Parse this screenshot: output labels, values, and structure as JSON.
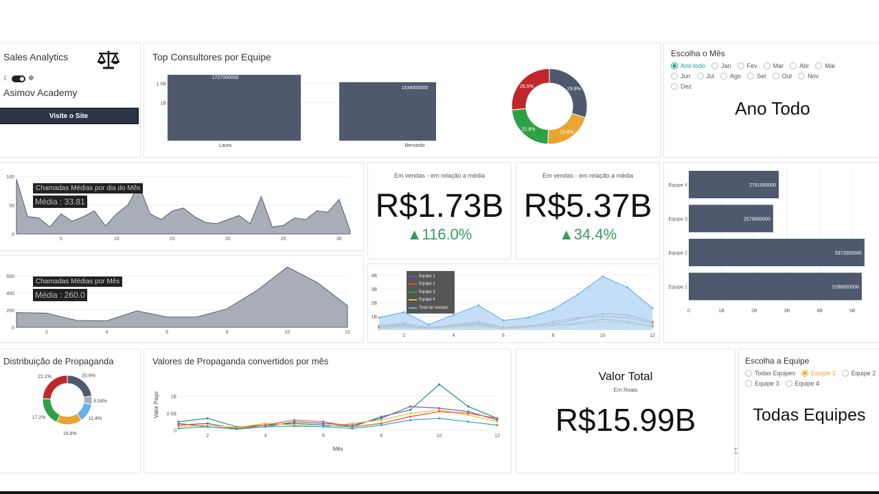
{
  "brand": {
    "app_title": "Sales Analytics",
    "org": "Asimov Academy",
    "visit_button": "Visite o Site",
    "logo_icon": "scale-icon"
  },
  "top_consultants": {
    "title": "Top Consultores por Equipe",
    "chart_data": {
      "type": "bar",
      "categories": [
        "Laura",
        "Bernardo"
      ],
      "values": [
        1727000000,
        1534000000
      ],
      "value_labels": [
        "1727000000",
        "1534000000"
      ],
      "yticks": [
        "1.5B",
        "1B"
      ],
      "ylim": [
        0,
        1800000000
      ]
    }
  },
  "donut_top": {
    "chart_data": {
      "type": "pie",
      "labels": [
        "26.5%",
        "29.8%",
        "20.8%",
        "22.8%"
      ],
      "values": [
        26.5,
        29.8,
        20.8,
        22.8
      ],
      "colors": [
        "#c0272d",
        "#4e596d",
        "#e8a531",
        "#2ea046"
      ]
    }
  },
  "month_filter": {
    "title": "Escolha o Mês",
    "options": [
      "Ano todo",
      "Jan",
      "Fev",
      "Mar",
      "Abr",
      "Mai",
      "Jun",
      "Jul",
      "Ago",
      "Set",
      "Out",
      "Nov",
      "Dez"
    ],
    "selected": "Ano todo",
    "display": "Ano Todo"
  },
  "daily_calls": {
    "badge": "Chamadas Médias por dia do Mês",
    "avg": "Média : 33.81",
    "chart_data": {
      "type": "area",
      "x": [
        1,
        2,
        3,
        4,
        5,
        6,
        7,
        8,
        9,
        10,
        11,
        12,
        13,
        14,
        15,
        16,
        17,
        18,
        19,
        20,
        21,
        22,
        23,
        24,
        25,
        26,
        27,
        28,
        29,
        30,
        31
      ],
      "y": [
        95,
        30,
        28,
        12,
        35,
        22,
        30,
        40,
        14,
        35,
        50,
        85,
        35,
        25,
        40,
        45,
        30,
        20,
        18,
        25,
        32,
        18,
        65,
        12,
        15,
        28,
        25,
        40,
        38,
        60,
        5
      ],
      "xticks": [
        "5",
        "10",
        "15",
        "20",
        "25",
        "30"
      ],
      "yticks": [
        "100",
        "50",
        "0"
      ],
      "ylim": [
        0,
        100
      ]
    }
  },
  "kpi1": {
    "caption": "Em vendas - em relação a média",
    "value": "R$1.73B",
    "delta": "▲116.0%"
  },
  "kpi2": {
    "caption": "Em vendas - em relação a média",
    "value": "R$5.37B",
    "delta": "▲34.4%"
  },
  "team_bars": {
    "chart_data": {
      "type": "bar",
      "orientation": "horizontal",
      "categories": [
        "Equipe 4",
        "Equipe 3",
        "Equipe 2",
        "Equipe 1"
      ],
      "values": [
        2751000000,
        2579000000,
        5372000000,
        5288000000
      ],
      "value_labels": [
        "2751000000",
        "2579000000",
        "5372000000",
        "5288000000"
      ],
      "xticks": [
        "0",
        "1B",
        "2B",
        "3B",
        "4B",
        "5B"
      ],
      "xlim": [
        0,
        5500000000
      ]
    }
  },
  "monthly_calls": {
    "badge": "Chamadas Médias por Mês",
    "avg": "Média : 260.0",
    "chart_data": {
      "type": "area",
      "x": [
        1,
        2,
        3,
        4,
        5,
        6,
        7,
        8,
        9,
        10,
        11,
        12
      ],
      "y": [
        170,
        165,
        80,
        75,
        190,
        120,
        120,
        215,
        430,
        700,
        520,
        250
      ],
      "xticks": [
        "2",
        "4",
        "6",
        "8",
        "10",
        "12"
      ],
      "yticks": [
        "600",
        "400",
        "200",
        "0"
      ],
      "ylim": [
        0,
        750
      ]
    }
  },
  "team_lines": {
    "legend": [
      "Equipe 1",
      "Equipe 2",
      "Equipe 3",
      "Equipe 4",
      "Total de Vendas"
    ],
    "chart_data": {
      "type": "line",
      "x": [
        1,
        2,
        3,
        4,
        5,
        6,
        7,
        8,
        9,
        10,
        11,
        12
      ],
      "series": [
        {
          "name": "Equipe 1",
          "values": [
            0.2,
            0.4,
            0.2,
            0.3,
            0.5,
            0.2,
            0.3,
            0.4,
            0.8,
            1.2,
            1.1,
            0.6
          ],
          "color": "#6a5acd"
        },
        {
          "name": "Equipe 2",
          "values": [
            0.3,
            0.5,
            0.1,
            0.4,
            0.6,
            0.2,
            0.2,
            0.6,
            0.9,
            1.0,
            0.9,
            0.5
          ],
          "color": "#e4572e"
        },
        {
          "name": "Equipe 3",
          "values": [
            0.2,
            0.3,
            0.1,
            0.3,
            0.4,
            0.1,
            0.2,
            0.3,
            0.5,
            0.8,
            0.6,
            0.3
          ],
          "color": "#2ea046"
        },
        {
          "name": "Equipe 4",
          "values": [
            0.1,
            0.2,
            0.1,
            0.2,
            0.3,
            0.1,
            0.2,
            0.3,
            0.4,
            0.6,
            0.5,
            0.2
          ],
          "color": "#e8c020"
        },
        {
          "name": "Total de Vendas",
          "values": [
            0.9,
            1.3,
            0.4,
            1.1,
            1.8,
            0.7,
            0.9,
            1.5,
            2.6,
            3.9,
            3.1,
            1.6
          ],
          "color": "#6ab0ea"
        }
      ],
      "xticks": [
        "2",
        "4",
        "6",
        "8",
        "10",
        "12"
      ],
      "yticks": [
        "4B",
        "3B",
        "2B",
        "1B"
      ],
      "ylim": [
        0,
        4.2
      ]
    }
  },
  "ad_distribution": {
    "title": "Distribuição de Propaganda",
    "chart_data": {
      "type": "pie",
      "labels": [
        "20.6%",
        "5.04%",
        "11.4%",
        "15.6%",
        "17.2%",
        "22.2%"
      ],
      "values": [
        20.6,
        5.04,
        11.4,
        15.6,
        17.2,
        22.2
      ],
      "colors": [
        "#4e596d",
        "#a8b0c0",
        "#6ab0ea",
        "#e8a531",
        "#2ea046",
        "#c0272d"
      ]
    }
  },
  "ad_values": {
    "title": "Valores de Propaganda convertidos por mês",
    "xlabel": "Mês",
    "ylabel": "Valor Pago",
    "chart_data": {
      "type": "line",
      "x": [
        1,
        2,
        3,
        4,
        5,
        6,
        7,
        8,
        9,
        10,
        11,
        12
      ],
      "series": [
        {
          "values": [
            0.25,
            0.35,
            0.1,
            0.15,
            0.2,
            0.15,
            0.1,
            0.4,
            0.6,
            1.35,
            0.7,
            0.35
          ],
          "color": "#1a8f7a"
        },
        {
          "values": [
            0.15,
            0.2,
            0.05,
            0.1,
            0.25,
            0.2,
            0.15,
            0.35,
            0.7,
            0.65,
            0.55,
            0.3
          ],
          "color": "#6a5acd"
        },
        {
          "values": [
            0.1,
            0.15,
            0.08,
            0.2,
            0.15,
            0.1,
            0.2,
            0.3,
            0.5,
            0.6,
            0.45,
            0.25
          ],
          "color": "#e8c020"
        },
        {
          "values": [
            0.2,
            0.1,
            0.05,
            0.15,
            0.3,
            0.25,
            0.1,
            0.2,
            0.4,
            0.55,
            0.5,
            0.35
          ],
          "color": "#e4572e"
        },
        {
          "values": [
            0.05,
            0.1,
            0.03,
            0.1,
            0.12,
            0.1,
            0.05,
            0.15,
            0.3,
            0.35,
            0.25,
            0.15
          ],
          "color": "#2ea0c0"
        }
      ],
      "xticks": [
        "2",
        "4",
        "6",
        "8",
        "10",
        "12"
      ],
      "yticks": [
        "1B",
        "0.5B",
        "0"
      ],
      "ylim": [
        0,
        1.5
      ]
    }
  },
  "total_value": {
    "title": "Valor Total",
    "caption": "Em Reais",
    "value": "R$15.99B"
  },
  "team_filter": {
    "title": "Escolha a Equipe",
    "options": [
      "Todas Equipes",
      "Equipe 1",
      "Equipe 2",
      "Equipe 3",
      "Equipe 4"
    ],
    "selected": "Equipe 1",
    "display": "Todas Equipes"
  }
}
